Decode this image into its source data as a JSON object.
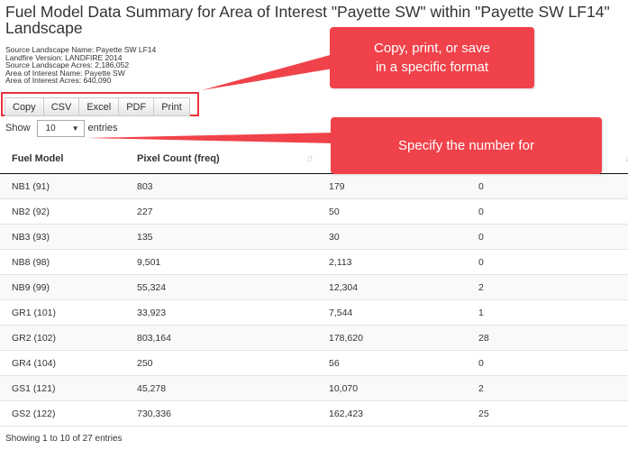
{
  "header": {
    "title": "Fuel Model Data Summary for Area of Interest \"Payette SW\" within \"Payette SW LF14\" Landscape",
    "meta": [
      "Source Landscape Name: Payette SW LF14",
      "Landfire Version: LANDFIRE 2014",
      "Source Landscape Acres: 2,186,052",
      "Area of Interest Name: Payette SW",
      "Area of Interest Acres: 640,090"
    ]
  },
  "buttons": [
    "Copy",
    "CSV",
    "Excel",
    "PDF",
    "Print"
  ],
  "length_menu": {
    "label_before": "Show",
    "selected": "10",
    "label_after": "entries"
  },
  "table": {
    "columns": [
      "Fuel Model",
      "Pixel Count (freq)",
      "",
      ""
    ],
    "rows": [
      [
        "NB1 (91)",
        "803",
        "179",
        "0"
      ],
      [
        "NB2 (92)",
        "227",
        "50",
        "0"
      ],
      [
        "NB3 (93)",
        "135",
        "30",
        "0"
      ],
      [
        "NB8 (98)",
        "9,501",
        "2,113",
        "0"
      ],
      [
        "NB9 (99)",
        "55,324",
        "12,304",
        "2"
      ],
      [
        "GR1 (101)",
        "33,923",
        "7,544",
        "1"
      ],
      [
        "GR2 (102)",
        "803,164",
        "178,620",
        "28"
      ],
      [
        "GR4 (104)",
        "250",
        "56",
        "0"
      ],
      [
        "GS1 (121)",
        "45,278",
        "10,070",
        "2"
      ],
      [
        "GS2 (122)",
        "730,336",
        "162,423",
        "25"
      ]
    ]
  },
  "info": "Showing 1 to 10 of 27 entries",
  "callouts": {
    "export_line1": "Copy, print, or save",
    "export_line2": "in a specific format",
    "entries": "Specify the number for"
  },
  "colors": {
    "callout": "#f0424a",
    "highlight_border": "#e8333b"
  }
}
